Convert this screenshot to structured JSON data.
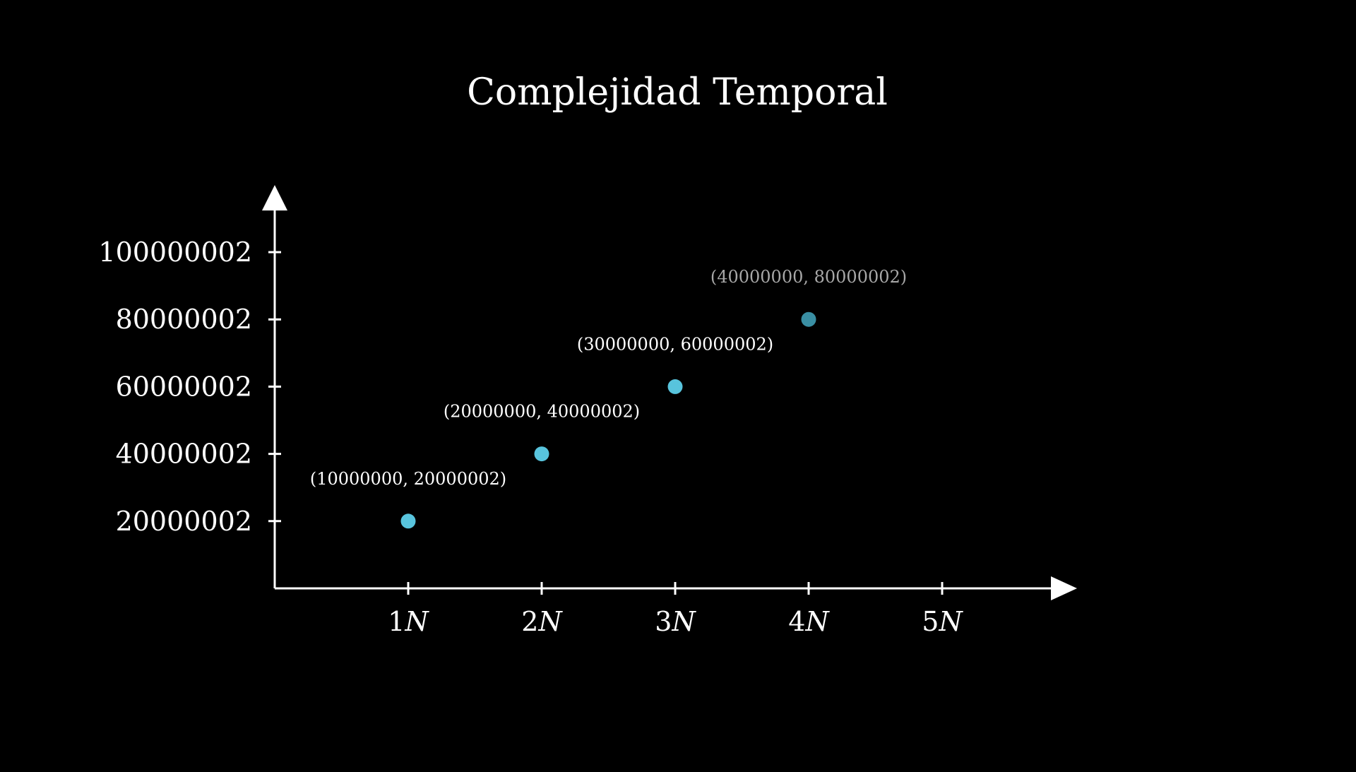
{
  "chart_data": {
    "type": "scatter",
    "title": "Complejidad Temporal",
    "xlabel": "",
    "ylabel": "",
    "x_unit_symbol": "N",
    "x_tick_values": [
      1,
      2,
      3,
      4,
      5
    ],
    "x_tick_labels": [
      "1",
      "2",
      "3",
      "4",
      "5"
    ],
    "y_tick_values": [
      20000002,
      40000002,
      60000002,
      80000002,
      100000002
    ],
    "y_tick_labels": [
      "20000002",
      "40000002",
      "60000002",
      "80000002",
      "100000002"
    ],
    "xlim": [
      0,
      6
    ],
    "ylim": [
      0,
      120000000
    ],
    "grid": false,
    "axis_color": "#ffffff",
    "background_color": "#000000",
    "points": [
      {
        "x": 1,
        "y": 20000002,
        "label": "(10000000, 20000002)",
        "color": "#58c4dd",
        "label_color": "#ffffff"
      },
      {
        "x": 2,
        "y": 40000002,
        "label": "(20000000, 40000002)",
        "color": "#58c4dd",
        "label_color": "#ffffff"
      },
      {
        "x": 3,
        "y": 60000002,
        "label": "(30000000, 60000002)",
        "color": "#58c4dd",
        "label_color": "#ffffff"
      },
      {
        "x": 4,
        "y": 80000002,
        "label": "(40000000, 80000002)",
        "color": "#3a8fa3",
        "label_color": "#a8a8a8"
      }
    ]
  }
}
